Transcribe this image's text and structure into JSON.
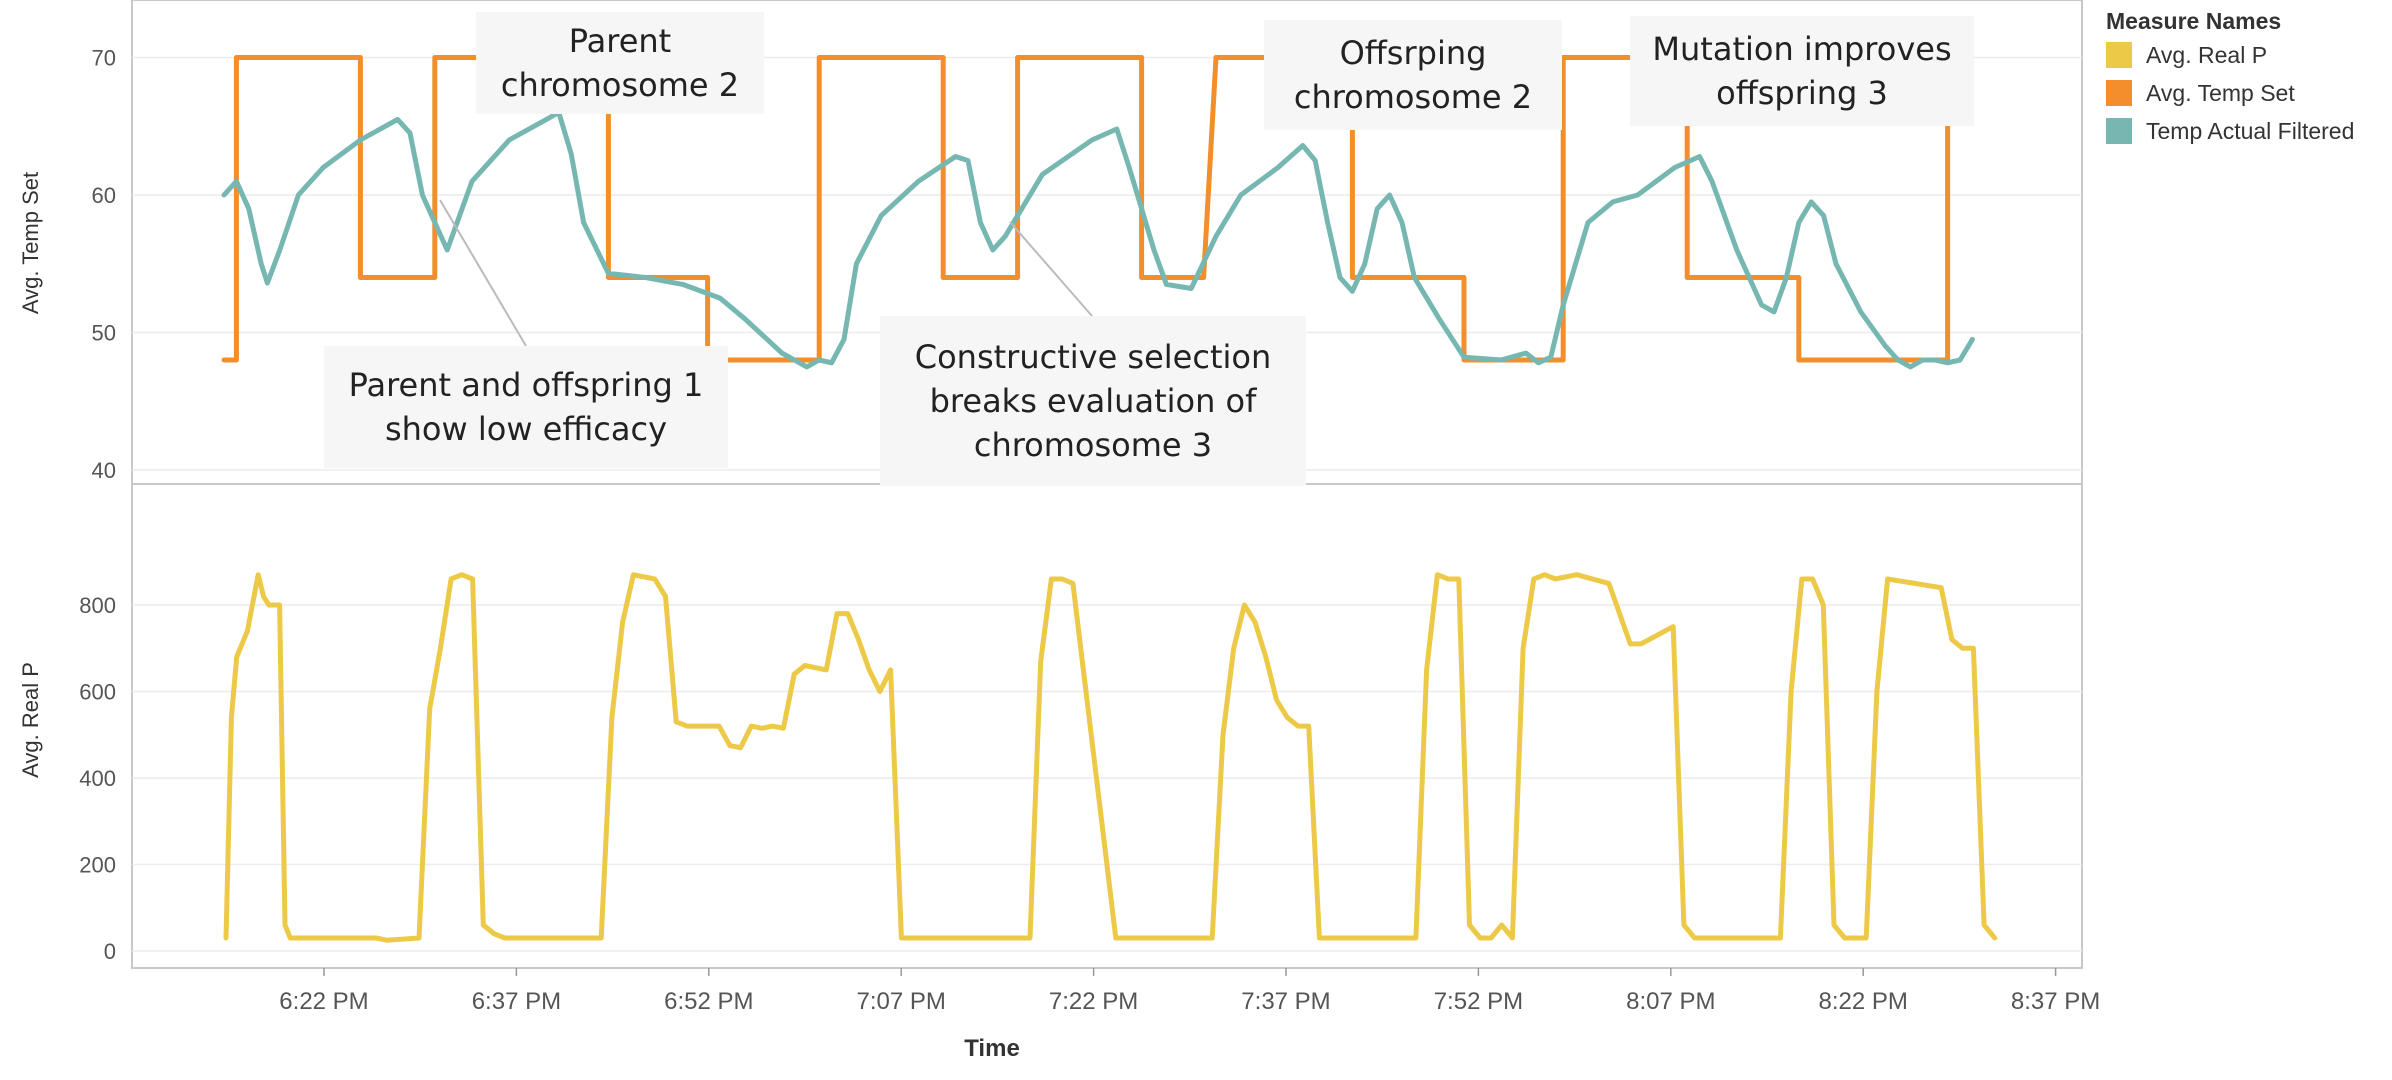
{
  "chart_data": [
    {
      "type": "line",
      "panel": "top",
      "ylabel": "Avg. Temp Set",
      "ylim": [
        40,
        75
      ],
      "yticks": [
        40,
        50,
        60,
        70
      ],
      "series": [
        {
          "name": "Avg. Temp Set",
          "color": "#f28e2b",
          "points": [
            [
              0,
              48
            ],
            [
              1,
              48
            ],
            [
              1,
              70
            ],
            [
              11,
              70
            ],
            [
              11,
              54
            ],
            [
              17,
              54
            ],
            [
              17,
              70
            ],
            [
              31,
              70
            ],
            [
              31,
              54
            ],
            [
              39,
              54
            ],
            [
              39,
              54
            ],
            [
              39,
              48
            ],
            [
              48,
              48
            ],
            [
              48,
              70
            ],
            [
              58,
              70
            ],
            [
              58,
              54
            ],
            [
              64,
              54
            ],
            [
              64,
              70
            ],
            [
              74,
              70
            ],
            [
              74,
              54
            ],
            [
              79,
              54
            ],
            [
              80,
              70
            ],
            [
              91,
              70
            ],
            [
              91,
              54
            ],
            [
              100,
              54
            ],
            [
              100,
              48
            ],
            [
              108,
              48
            ],
            [
              108,
              70
            ],
            [
              118,
              70
            ],
            [
              118,
              54
            ],
            [
              127,
              54
            ],
            [
              127,
              48
            ],
            [
              139,
              48
            ],
            [
              139,
              70
            ],
            [
              140,
              70
            ]
          ]
        },
        {
          "name": "Temp Actual Filtered",
          "color": "#76b7b2",
          "points": [
            [
              0,
              60
            ],
            [
              1,
              61
            ],
            [
              2,
              59
            ],
            [
              3,
              55
            ],
            [
              3.5,
              53.6
            ],
            [
              4.5,
              56
            ],
            [
              6,
              60
            ],
            [
              8,
              62
            ],
            [
              11,
              64
            ],
            [
              14,
              65.5
            ],
            [
              15,
              64.5
            ],
            [
              16,
              60
            ],
            [
              18,
              56
            ],
            [
              20,
              61
            ],
            [
              23,
              64
            ],
            [
              26,
              65.5
            ],
            [
              27,
              66
            ],
            [
              28,
              63
            ],
            [
              29,
              58
            ],
            [
              31,
              54.3
            ],
            [
              34,
              54
            ],
            [
              37,
              53.5
            ],
            [
              40,
              52.5
            ],
            [
              42,
              51
            ],
            [
              45,
              48.5
            ],
            [
              47,
              47.5
            ],
            [
              48,
              48
            ],
            [
              49,
              47.8
            ],
            [
              50,
              49.5
            ],
            [
              51,
              55
            ],
            [
              53,
              58.5
            ],
            [
              56,
              61
            ],
            [
              59,
              62.8
            ],
            [
              60,
              62.5
            ],
            [
              61,
              58
            ],
            [
              62,
              56
            ],
            [
              63,
              57
            ],
            [
              66,
              61.5
            ],
            [
              70,
              64
            ],
            [
              72,
              64.8
            ],
            [
              73,
              62
            ],
            [
              75,
              56
            ],
            [
              76,
              53.5
            ],
            [
              78,
              53.2
            ],
            [
              80,
              57
            ],
            [
              82,
              60
            ],
            [
              85,
              62
            ],
            [
              87,
              63.6
            ],
            [
              88,
              62.5
            ],
            [
              89,
              58
            ],
            [
              90,
              54
            ],
            [
              91,
              53
            ],
            [
              92,
              55
            ],
            [
              93,
              59
            ],
            [
              94,
              60
            ],
            [
              95,
              58
            ],
            [
              96,
              54
            ],
            [
              98,
              51
            ],
            [
              100,
              48.2
            ],
            [
              103,
              48
            ],
            [
              105,
              48.5
            ],
            [
              106,
              47.8
            ],
            [
              107,
              48.2
            ],
            [
              108,
              52
            ],
            [
              110,
              58
            ],
            [
              112,
              59.5
            ],
            [
              114,
              60
            ],
            [
              117,
              62
            ],
            [
              119,
              62.8
            ],
            [
              120,
              61
            ],
            [
              122,
              56
            ],
            [
              124,
              52
            ],
            [
              125,
              51.5
            ],
            [
              126,
              54
            ],
            [
              127,
              58
            ],
            [
              128,
              59.5
            ],
            [
              129,
              58.5
            ],
            [
              130,
              55
            ],
            [
              132,
              51.5
            ],
            [
              134,
              49
            ],
            [
              135,
              48
            ],
            [
              136,
              47.5
            ],
            [
              137,
              48
            ],
            [
              138,
              48
            ],
            [
              139,
              47.8
            ],
            [
              140,
              48
            ],
            [
              141,
              49.5
            ]
          ]
        }
      ],
      "annotations": [
        {
          "text_lines": [
            "Parent",
            "chromosome 2"
          ]
        },
        {
          "text_lines": [
            "Offsrping",
            "chromosome 2"
          ]
        },
        {
          "text_lines": [
            "Mutation improves",
            "offspring 3"
          ]
        },
        {
          "text_lines": [
            "Parent and offspring 1",
            "show low efficacy"
          ]
        },
        {
          "text_lines": [
            "Constructive selection",
            "breaks evaluation of",
            "chromosome 3"
          ]
        }
      ]
    },
    {
      "type": "line",
      "panel": "bottom",
      "ylabel": "Avg. Real P",
      "ylim": [
        0,
        950
      ],
      "yticks": [
        0,
        200,
        400,
        600,
        800
      ],
      "series": [
        {
          "name": "Avg. Real P",
          "color": "#edc948",
          "points": [
            [
              0,
              30
            ],
            [
              0.5,
              540
            ],
            [
              1,
              680
            ],
            [
              2,
              740
            ],
            [
              3,
              870
            ],
            [
              3.5,
              820
            ],
            [
              4,
              800
            ],
            [
              5,
              800
            ],
            [
              5.5,
              60
            ],
            [
              6,
              30
            ],
            [
              14,
              30
            ],
            [
              15,
              25
            ],
            [
              18,
              30
            ],
            [
              19,
              560
            ],
            [
              20,
              700
            ],
            [
              21,
              860
            ],
            [
              22,
              870
            ],
            [
              23,
              860
            ],
            [
              24,
              60
            ],
            [
              25,
              40
            ],
            [
              26,
              30
            ],
            [
              34,
              30
            ],
            [
              35,
              30
            ],
            [
              36,
              540
            ],
            [
              37,
              760
            ],
            [
              38,
              870
            ],
            [
              40,
              860
            ],
            [
              41,
              820
            ],
            [
              42,
              530
            ],
            [
              43,
              520
            ],
            [
              44,
              520
            ],
            [
              46,
              520
            ],
            [
              47,
              475
            ],
            [
              48,
              470
            ],
            [
              49,
              520
            ],
            [
              50,
              515
            ],
            [
              51,
              520
            ],
            [
              52,
              515
            ],
            [
              53,
              640
            ],
            [
              54,
              660
            ],
            [
              56,
              650
            ],
            [
              57,
              780
            ],
            [
              58,
              780
            ],
            [
              59,
              720
            ],
            [
              60,
              650
            ],
            [
              61,
              600
            ],
            [
              62,
              650
            ],
            [
              63,
              30
            ],
            [
              66,
              30
            ],
            [
              74,
              30
            ],
            [
              75,
              30
            ],
            [
              76,
              670
            ],
            [
              77,
              860
            ],
            [
              78,
              860
            ],
            [
              79,
              850
            ],
            [
              83,
              30
            ],
            [
              86,
              30
            ],
            [
              88,
              30
            ],
            [
              92,
              30
            ],
            [
              93,
              500
            ],
            [
              94,
              700
            ],
            [
              95,
              800
            ],
            [
              96,
              760
            ],
            [
              97,
              680
            ],
            [
              98,
              580
            ],
            [
              99,
              540
            ],
            [
              100,
              520
            ],
            [
              101,
              520
            ],
            [
              102,
              30
            ],
            [
              110,
              30
            ],
            [
              111,
              30
            ],
            [
              112,
              650
            ],
            [
              113,
              870
            ],
            [
              114,
              860
            ],
            [
              115,
              860
            ],
            [
              116,
              60
            ],
            [
              117,
              30
            ],
            [
              118,
              30
            ],
            [
              119,
              60
            ],
            [
              120,
              30
            ],
            [
              121,
              700
            ],
            [
              122,
              860
            ],
            [
              123,
              870
            ],
            [
              124,
              860
            ],
            [
              126,
              870
            ],
            [
              129,
              850
            ],
            [
              131,
              710
            ],
            [
              132,
              710
            ],
            [
              135,
              750
            ],
            [
              136,
              60
            ],
            [
              137,
              30
            ],
            [
              145,
              30
            ],
            [
              146,
              600
            ],
            [
              147,
              860
            ],
            [
              148,
              860
            ],
            [
              149,
              800
            ],
            [
              150,
              60
            ],
            [
              151,
              30
            ],
            [
              153,
              30
            ],
            [
              154,
              600
            ],
            [
              155,
              860
            ],
            [
              160,
              840
            ],
            [
              161,
              720
            ],
            [
              162,
              700
            ],
            [
              163,
              700
            ],
            [
              164,
              60
            ],
            [
              165,
              30
            ]
          ]
        }
      ]
    }
  ],
  "legend": {
    "title": "Measure Names",
    "items": [
      {
        "label": "Avg. Real P",
        "color": "#edc948"
      },
      {
        "label": "Avg. Temp Set",
        "color": "#f28e2b"
      },
      {
        "label": "Temp Actual Filtered",
        "color": "#76b7b2"
      }
    ]
  },
  "x_axis": {
    "label": "Time",
    "ticks": [
      "6:22 PM",
      "6:37 PM",
      "6:52 PM",
      "7:07 PM",
      "7:22 PM",
      "7:37 PM",
      "7:52 PM",
      "8:07 PM",
      "8:22 PM",
      "8:37 PM"
    ]
  }
}
